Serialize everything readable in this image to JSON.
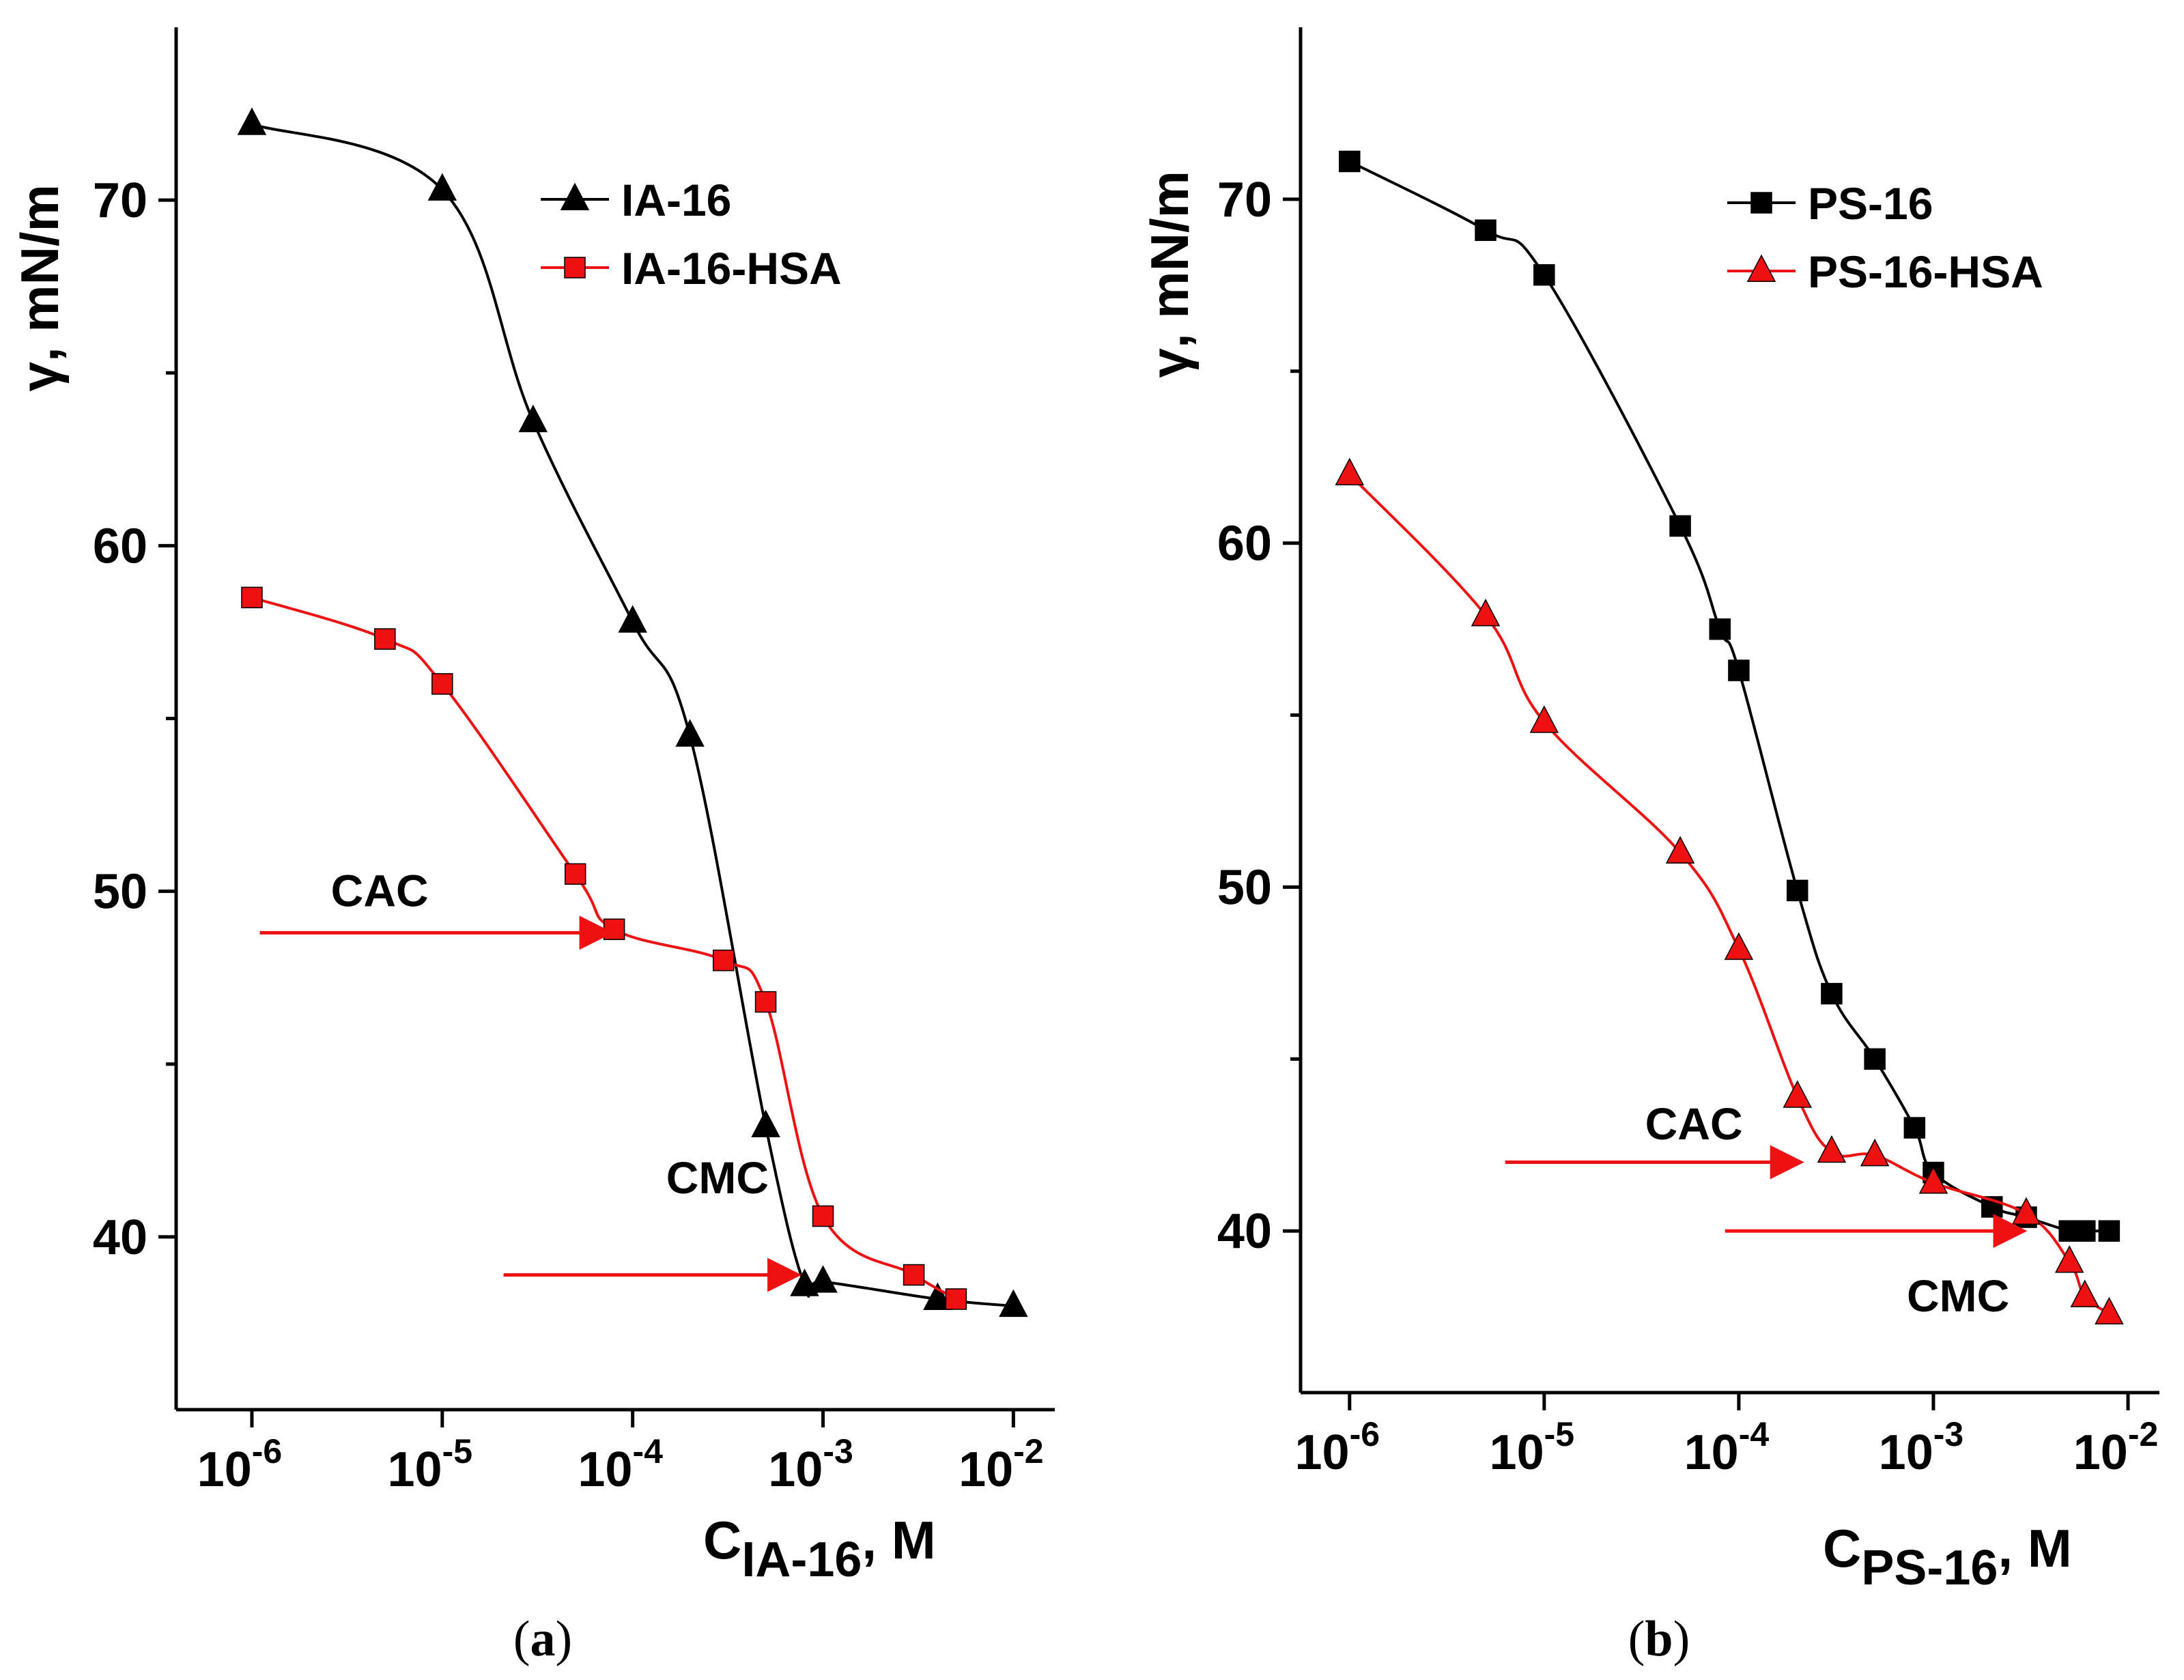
{
  "chart_data": [
    {
      "type": "line",
      "panel_label": "a",
      "xlabel_main": "C",
      "xlabel_sub": "IA-16",
      "xlabel_unit": ", M",
      "ylabel": "γ, mN/m",
      "xscale": "log",
      "xlim": [
        4e-07,
        0.0165
      ],
      "ylim": [
        35,
        75
      ],
      "x_ticks": [
        {
          "base": "10",
          "exp": "-6"
        },
        {
          "base": "10",
          "exp": "-5"
        },
        {
          "base": "10",
          "exp": "-4"
        },
        {
          "base": "10",
          "exp": "-3"
        },
        {
          "base": "10",
          "exp": "-2"
        }
      ],
      "x_tick_values": [
        1e-06,
        1e-05,
        0.0001,
        0.001,
        0.01
      ],
      "y_ticks": [
        "40",
        "50",
        "60",
        "70"
      ],
      "y_tick_values": [
        40,
        50,
        60,
        70
      ],
      "y_minor": [
        45,
        55,
        65
      ],
      "legend": {
        "position": "top-right"
      },
      "series": [
        {
          "name": "IA-16",
          "color": "#000000",
          "marker": "triangle",
          "x": [
            1e-06,
            1e-05,
            3e-05,
            0.0001,
            0.0002,
            0.0005,
            0.0008,
            0.001,
            0.004,
            0.01
          ],
          "y": [
            72.2,
            70.3,
            63.6,
            57.8,
            54.5,
            43.2,
            38.6,
            38.7,
            38.2,
            38.0
          ]
        },
        {
          "name": "IA-16-HSA",
          "color": "#ee1111",
          "marker": "square",
          "x": [
            1e-06,
            5e-06,
            1e-05,
            5e-05,
            8e-05,
            0.0003,
            0.0005,
            0.001,
            0.003,
            0.005
          ],
          "y": [
            58.5,
            57.3,
            56.0,
            50.5,
            48.9,
            48.0,
            46.8,
            40.6,
            38.9,
            38.2
          ]
        }
      ],
      "annotations": [
        {
          "text": "CAC",
          "label_x": 2.6e-06,
          "label_y": 50.0,
          "arrow_from": [
            1.1e-06,
            48.8
          ],
          "arrow_to": [
            7.3e-05,
            48.8
          ],
          "color": "#ee1111"
        },
        {
          "text": "CMC",
          "label_x": 0.00015,
          "label_y": 41.7,
          "arrow_from": [
            2.1e-05,
            38.9
          ],
          "arrow_to": [
            0.00071,
            38.9
          ],
          "color": "#ee1111"
        }
      ]
    },
    {
      "type": "line",
      "panel_label": "b",
      "xlabel_main": "C",
      "xlabel_sub": "PS-16",
      "xlabel_unit": ", M",
      "ylabel": "γ, mN/m",
      "xscale": "log",
      "xlim": [
        5.6e-07,
        0.0145
      ],
      "ylim": [
        35.3,
        75
      ],
      "x_ticks": [
        {
          "base": "10",
          "exp": "-6"
        },
        {
          "base": "10",
          "exp": "-5"
        },
        {
          "base": "10",
          "exp": "-4"
        },
        {
          "base": "10",
          "exp": "-3"
        },
        {
          "base": "10",
          "exp": "-2"
        }
      ],
      "x_tick_values": [
        1e-06,
        1e-05,
        0.0001,
        0.001,
        0.01
      ],
      "y_ticks": [
        "40",
        "50",
        "60",
        "70"
      ],
      "y_tick_values": [
        40,
        50,
        60,
        70
      ],
      "y_minor": [
        45,
        55,
        65
      ],
      "legend": {
        "position": "top-right"
      },
      "series": [
        {
          "name": "PS-16",
          "color": "#000000",
          "marker": "square",
          "x": [
            1e-06,
            5e-06,
            1e-05,
            5e-05,
            8e-05,
            0.0001,
            0.0002,
            0.0003,
            0.0005,
            0.0008,
            0.001,
            0.002,
            0.003,
            0.005,
            0.006,
            0.008
          ],
          "y": [
            71.1,
            69.1,
            67.8,
            60.5,
            57.5,
            56.3,
            49.9,
            46.9,
            45.0,
            43.0,
            41.7,
            40.7,
            40.4,
            40.0,
            40.0,
            40.0
          ]
        },
        {
          "name": "PS-16-HSA",
          "color": "#ee1111",
          "marker": "triangle",
          "x": [
            1e-06,
            5e-06,
            1e-05,
            5e-05,
            0.0001,
            0.0002,
            0.0003,
            0.0005,
            0.001,
            0.003,
            0.005,
            0.006,
            0.008
          ],
          "y": [
            62.0,
            57.9,
            54.8,
            51.0,
            48.2,
            43.9,
            42.3,
            42.2,
            41.4,
            40.5,
            39.1,
            38.1,
            37.6
          ]
        }
      ],
      "annotations": [
        {
          "text": "CAC",
          "label_x": 3.3e-05,
          "label_y": 43.1,
          "arrow_from": [
            6.3e-06,
            42.0
          ],
          "arrow_to": [
            0.0002,
            42.0
          ],
          "color": "#ee1111"
        },
        {
          "text": "CMC",
          "label_x": 0.00073,
          "label_y": 38.1,
          "arrow_from": [
            8.5e-05,
            40.0
          ],
          "arrow_to": [
            0.0028,
            40.0
          ],
          "color": "#ee1111"
        }
      ]
    }
  ]
}
